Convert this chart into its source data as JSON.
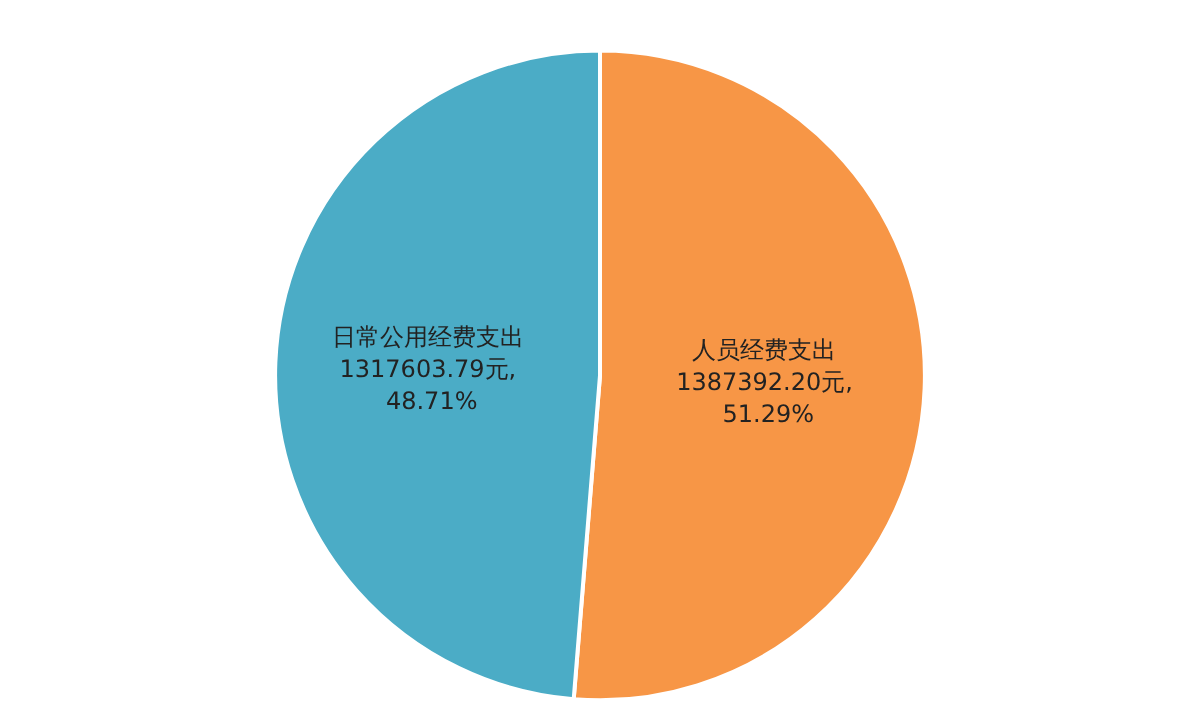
{
  "chart_data": {
    "type": "pie",
    "categories": [
      "人员经费支出",
      "日常公用经费支出"
    ],
    "values": [
      1387392.2,
      1317603.79
    ],
    "colors": [
      "#f79646",
      "#4bacc6"
    ],
    "value_labels": [
      "1387392.20元, 51.29%",
      "1317603.79元, 48.71%"
    ],
    "legend": false
  }
}
